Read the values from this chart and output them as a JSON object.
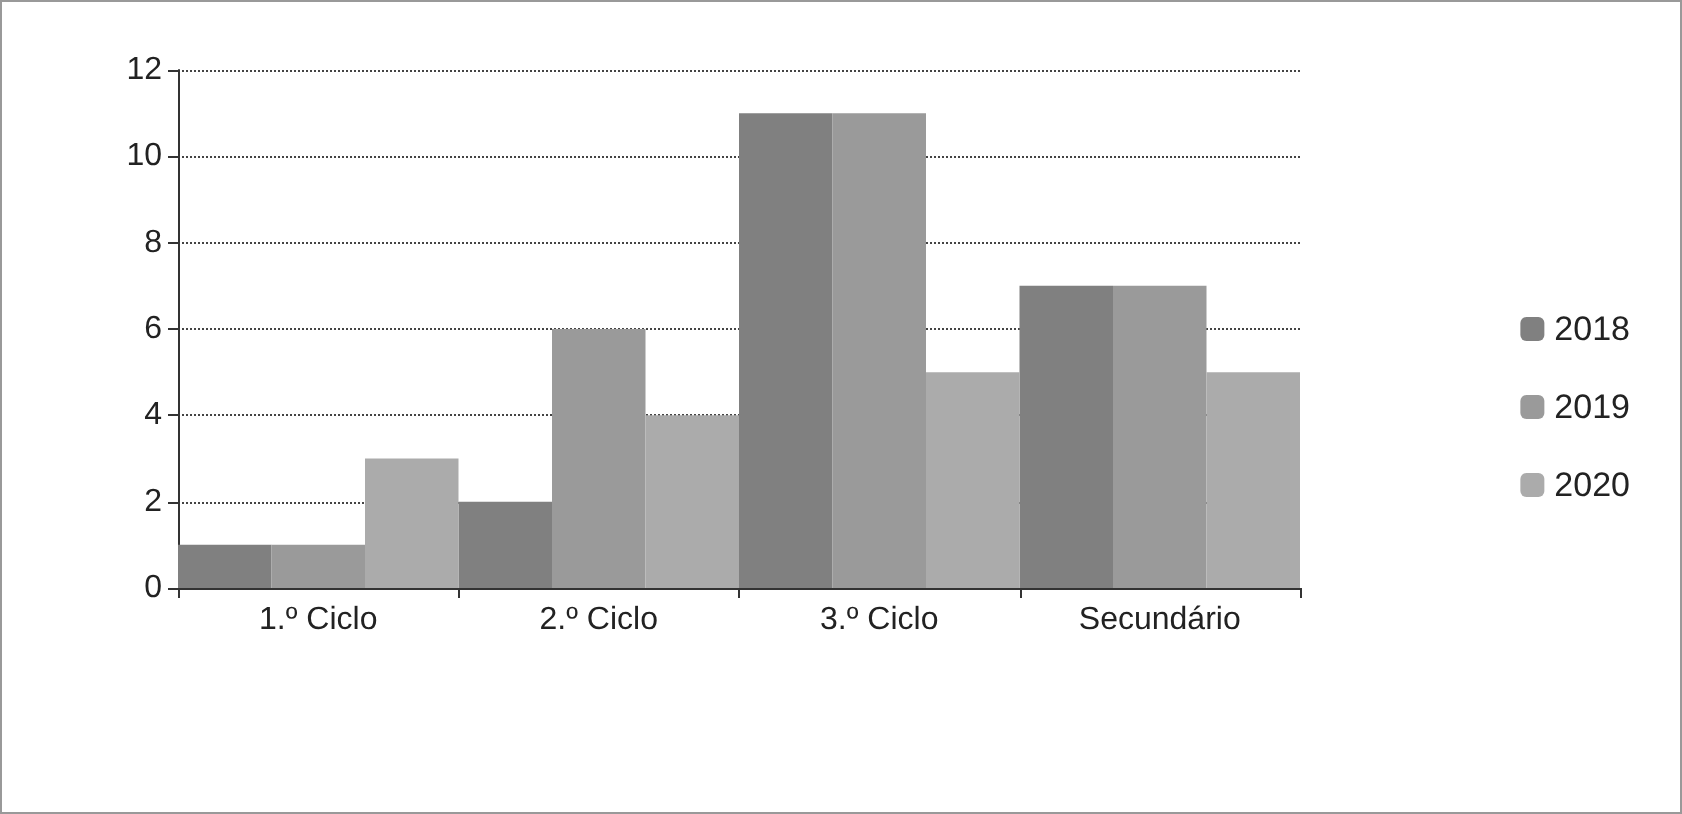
{
  "chart_data": {
    "type": "bar",
    "categories": [
      "1.º Ciclo",
      "2.º Ciclo",
      "3.º Ciclo",
      "Secundário"
    ],
    "series": [
      {
        "name": "2018",
        "color": "#808080",
        "values": [
          1,
          2,
          11,
          7
        ]
      },
      {
        "name": "2019",
        "color": "#9a9a9a",
        "values": [
          1,
          6,
          11,
          7
        ]
      },
      {
        "name": "2020",
        "color": "#ababab",
        "values": [
          3,
          4,
          5,
          5
        ]
      }
    ],
    "ylim": [
      0,
      12
    ],
    "yticks": [
      0,
      2,
      4,
      6,
      8,
      10,
      12
    ],
    "grid": "y",
    "legend": "right"
  }
}
